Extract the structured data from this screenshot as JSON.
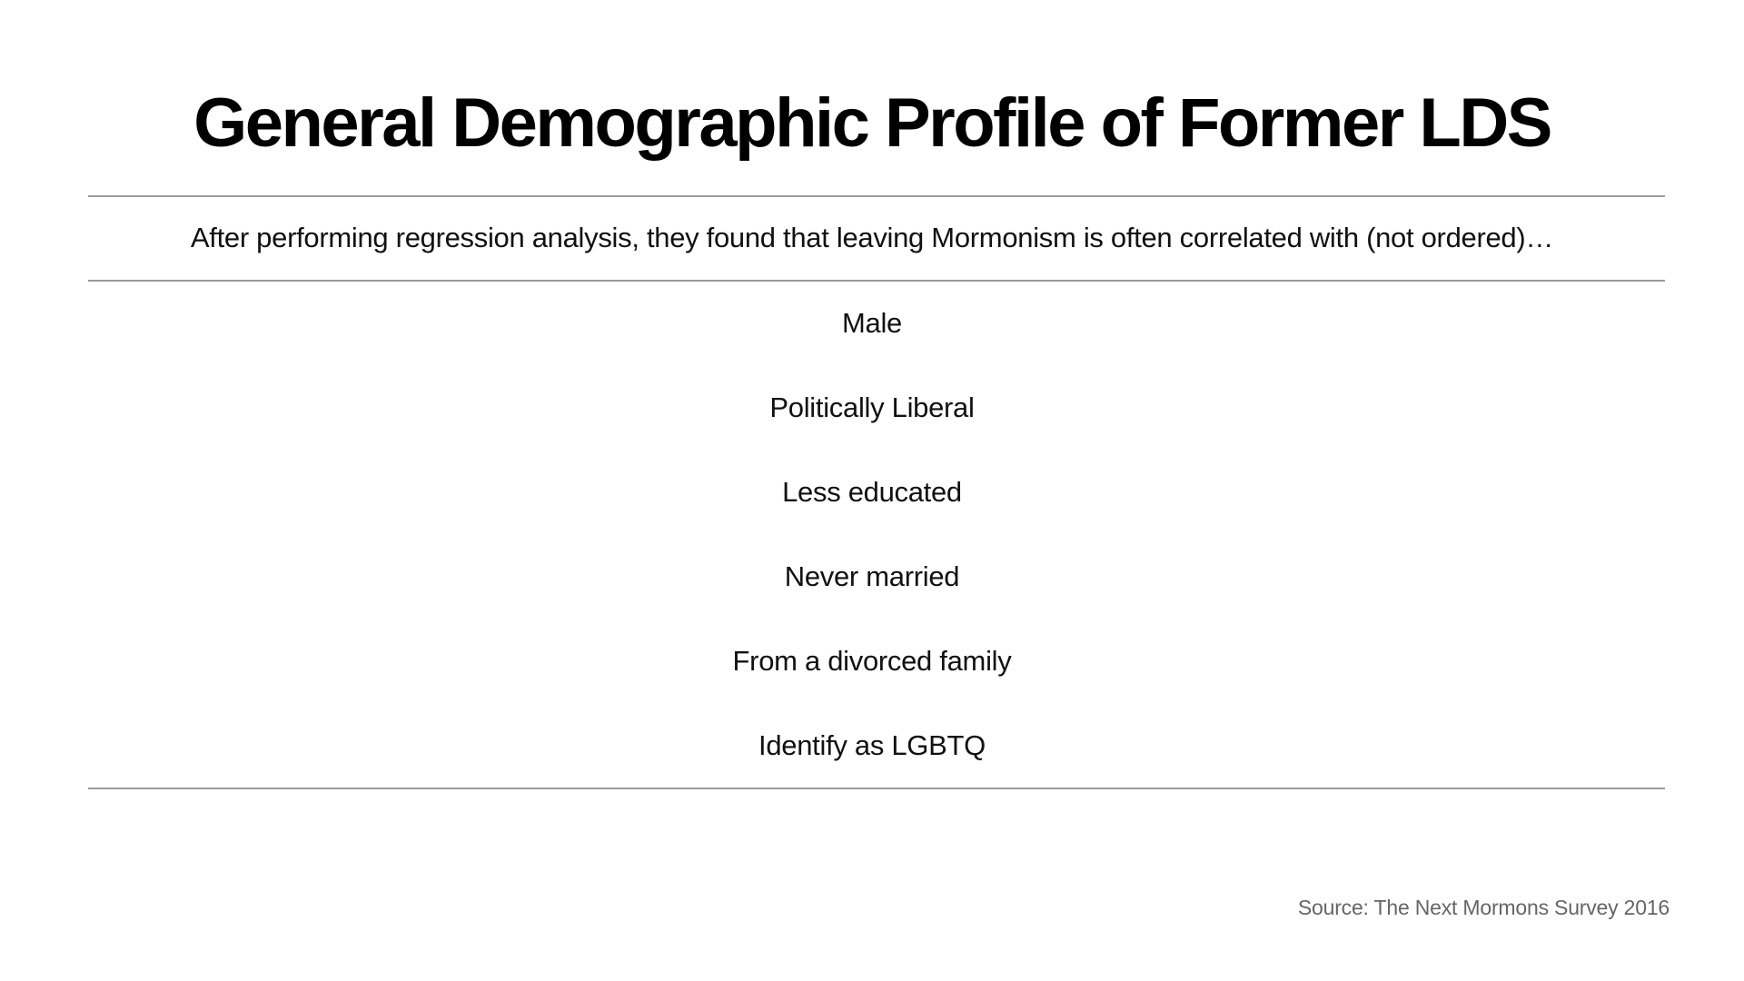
{
  "slide": {
    "title": "General Demographic Profile of Former LDS",
    "intro": "After performing regression analysis, they found that leaving Mormonism is often correlated with (not ordered)…",
    "factors": [
      "Male",
      "Politically Liberal",
      "Less educated",
      "Never married",
      "From a divorced family",
      "Identify as LGBTQ"
    ],
    "source": "Source: The Next Mormons Survey 2016"
  },
  "colors": {
    "title": "#000000",
    "body_text": "#111111",
    "rule": "#9a9a9a",
    "source": "#666666",
    "background": "#ffffff"
  }
}
